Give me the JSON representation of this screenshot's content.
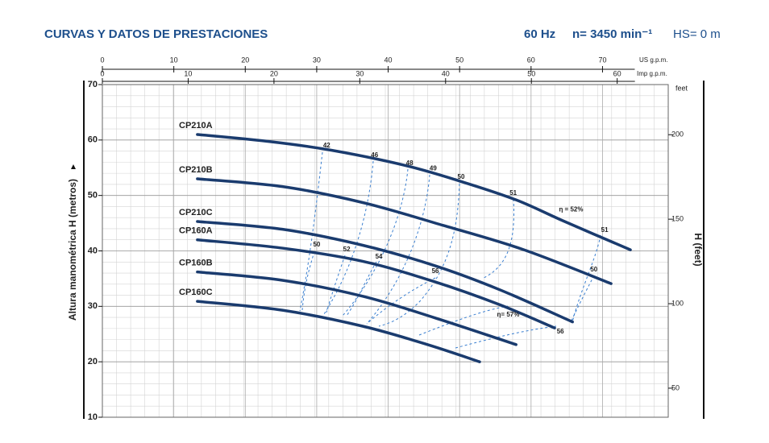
{
  "chart_data": {
    "type": "line",
    "title": "CURVAS Y DATOS DE PRESTACIONES",
    "header": [
      "60 Hz",
      "n= 3450 min⁻¹",
      "HS= 0 m"
    ],
    "ylabel": "Altura manométrica H (metros)",
    "y2label": "H (feet)",
    "y2unit": "feet",
    "xlabel": "US g.p.m.",
    "x2label": "Imp g.p.m.",
    "xlim": [
      0,
      79.2
    ],
    "xticks": [
      0,
      10,
      20,
      30,
      40,
      50,
      60,
      70
    ],
    "x2lim": [
      0,
      65.95
    ],
    "x2ticks": [
      0,
      10,
      20,
      30,
      40,
      50,
      60
    ],
    "ylim": [
      10,
      70
    ],
    "yticks": [
      10,
      20,
      30,
      40,
      50,
      60,
      70
    ],
    "y2lim": [
      32.81,
      229.66
    ],
    "y2ticks": [
      50,
      100,
      150,
      200
    ],
    "grid": true,
    "color": "#1a3b6e",
    "series": [
      {
        "name": "CP210A",
        "x": [
          13.3,
          22.9,
          31.4,
          42.1,
          50,
          57.9,
          64.7,
          73.9
        ],
        "values": [
          61.0,
          59.8,
          58.3,
          55.5,
          52.6,
          49.2,
          45.3,
          40.2
        ]
      },
      {
        "name": "CP210B",
        "x": [
          13.3,
          25.2,
          36.5,
          47.7,
          59.0,
          71.2
        ],
        "values": [
          53.0,
          51.6,
          48.7,
          44.6,
          40.2,
          34.1
        ]
      },
      {
        "name": "CP210C",
        "x": [
          13.3,
          25.2,
          36.5,
          46.6,
          55.6,
          65.8
        ],
        "values": [
          45.3,
          43.9,
          41.0,
          37.3,
          33.0,
          27.2
        ]
      },
      {
        "name": "CP160A",
        "x": [
          13.3,
          25.2,
          36.5,
          46.6,
          55.6,
          63.3
        ],
        "values": [
          42.0,
          40.5,
          38.1,
          34.4,
          30.3,
          26.1
        ]
      },
      {
        "name": "CP160B",
        "x": [
          13.3,
          25.2,
          36.5,
          46.6,
          57.9
        ],
        "values": [
          36.2,
          34.7,
          31.8,
          27.9,
          23.1
        ]
      },
      {
        "name": "CP160C",
        "x": [
          13.3,
          25.2,
          36.5,
          45.5,
          52.8
        ],
        "values": [
          30.9,
          29.3,
          26.4,
          23.1,
          20.0
        ]
      }
    ],
    "annotations": [
      {
        "text": "42",
        "x": 31.4,
        "y": 59.0
      },
      {
        "text": "46",
        "x": 38.1,
        "y": 57.2
      },
      {
        "text": "48",
        "x": 43.0,
        "y": 55.8
      },
      {
        "text": "49",
        "x": 46.3,
        "y": 54.8
      },
      {
        "text": "50",
        "x": 50.2,
        "y": 53.3
      },
      {
        "text": "51",
        "x": 57.5,
        "y": 50.4
      },
      {
        "text": "η = 52%",
        "x": 65.6,
        "y": 47.4
      },
      {
        "text": "51",
        "x": 70.3,
        "y": 43.7
      },
      {
        "text": "50",
        "x": 68.8,
        "y": 36.6
      },
      {
        "text": "50",
        "x": 30.0,
        "y": 41.1
      },
      {
        "text": "52",
        "x": 34.2,
        "y": 40.2
      },
      {
        "text": "54",
        "x": 38.7,
        "y": 38.9
      },
      {
        "text": "56",
        "x": 46.6,
        "y": 36.3
      },
      {
        "text": "η= 57%",
        "x": 56.8,
        "y": 28.5
      },
      {
        "text": "56",
        "x": 64.1,
        "y": 25.4
      }
    ]
  }
}
